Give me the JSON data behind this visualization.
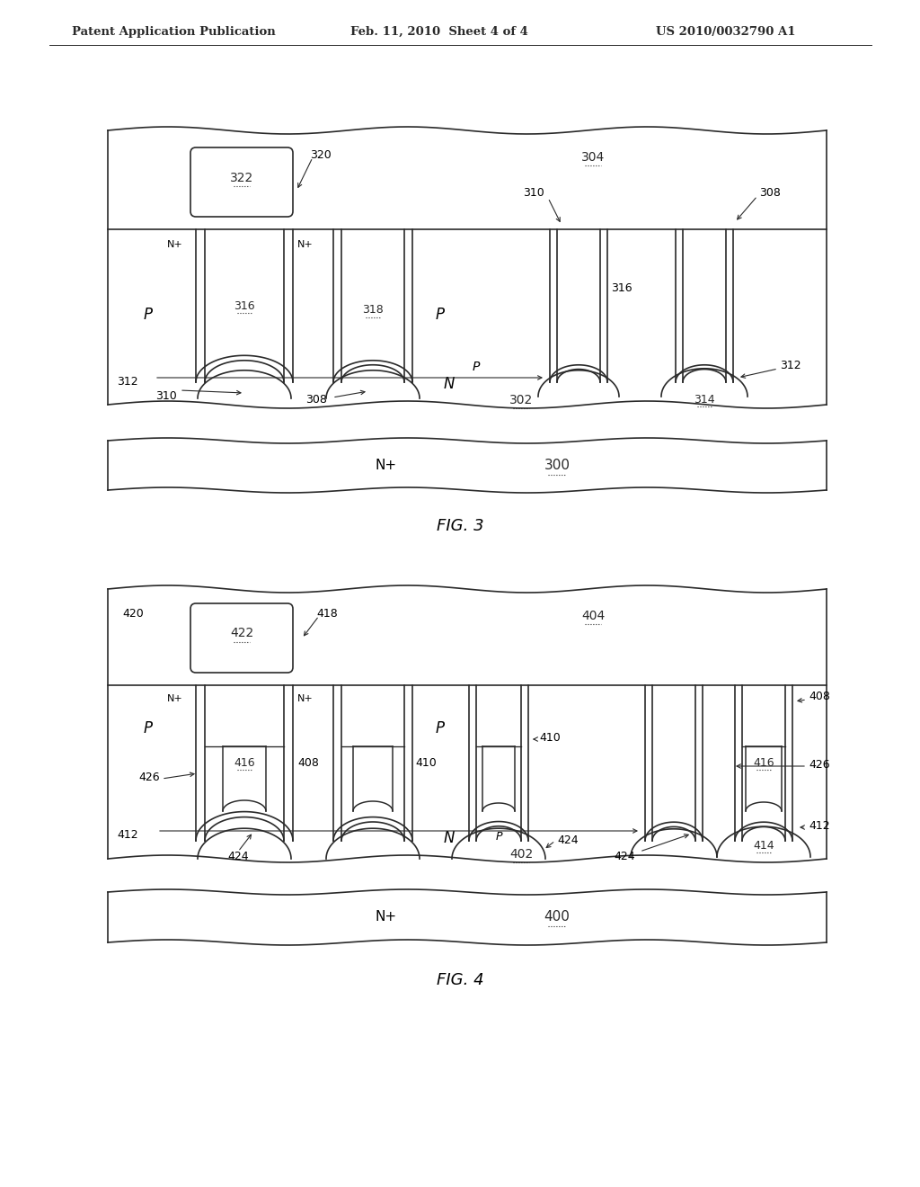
{
  "background_color": "#ffffff",
  "header_left": "Patent Application Publication",
  "header_mid": "Feb. 11, 2010  Sheet 4 of 4",
  "header_right": "US 2010/0032790 A1",
  "fig3_label": "FIG. 3",
  "fig4_label": "FIG. 4",
  "line_color": "#2a2a2a",
  "lw": 1.2
}
